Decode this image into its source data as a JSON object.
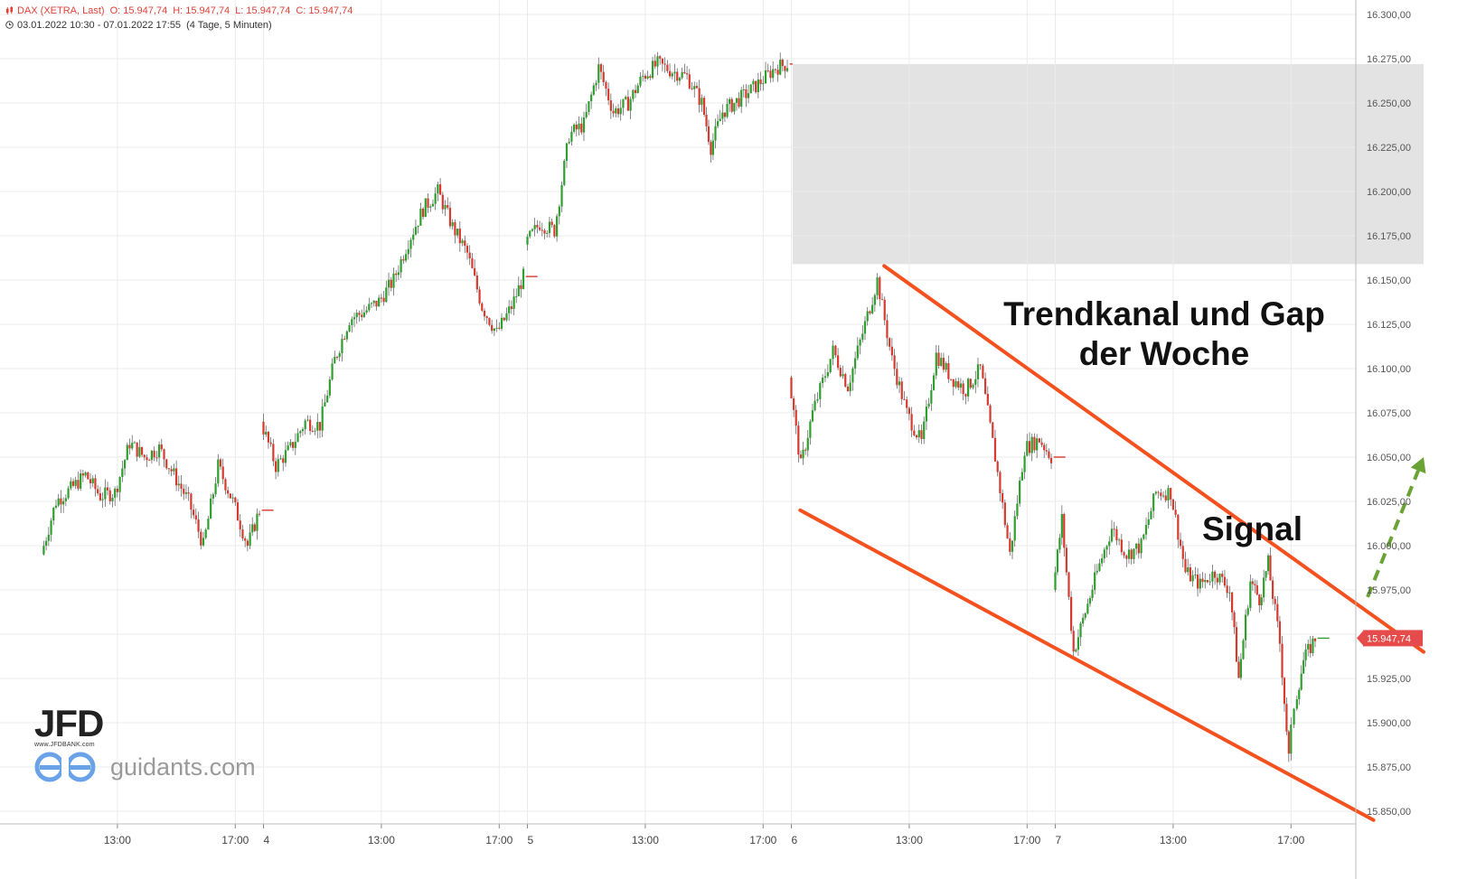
{
  "header": {
    "symbol": "DAX (XETRA, Last)",
    "open": "O: 15.947,74",
    "high": "H: 15.947,74",
    "low": "L: 15.947,74",
    "close": "C: 15.947,74",
    "range": "03.01.2022 10:30 - 07.01.2022 17:55",
    "interval": "(4 Tage, 5 Minuten)"
  },
  "annotations": {
    "title_line1": "Trendkanal und Gap",
    "title_line2": "der Woche",
    "signal": "Signal"
  },
  "branding": {
    "jfd": "JFD",
    "jfd_url": "www.JFDBANK.com",
    "guidants": "guidants.com"
  },
  "chart_data": {
    "type": "candlestick",
    "instrument": "DAX (XETRA, Last)",
    "timeframe": "5 Minuten",
    "ylim": [
      15840,
      16310
    ],
    "y_ticks": [
      15850,
      15875,
      15900,
      15925,
      15950,
      15975,
      16000,
      16025,
      16050,
      16075,
      16100,
      16125,
      16150,
      16175,
      16200,
      16225,
      16250,
      16275,
      16300
    ],
    "y_tick_labels": [
      "15.850,00",
      "15.875,00",
      "15.900,00",
      "15.925,00",
      "15.950,00",
      "15.975,00",
      "16.000,00",
      "16.025,00",
      "16.050,00",
      "16.075,00",
      "16.100,00",
      "16.125,00",
      "16.150,00",
      "16.175,00",
      "16.200,00",
      "16.225,00",
      "16.250,00",
      "16.275,00",
      "16.300,00"
    ],
    "x_ticks": [
      {
        "day": 0,
        "hour": 13,
        "label": "13:00"
      },
      {
        "day": 0,
        "hour": 17,
        "label": "17:00"
      },
      {
        "day": 1,
        "hour": 9,
        "label": "4"
      },
      {
        "day": 1,
        "hour": 13,
        "label": "13:00"
      },
      {
        "day": 1,
        "hour": 17,
        "label": "17:00"
      },
      {
        "day": 2,
        "hour": 9,
        "label": "5"
      },
      {
        "day": 2,
        "hour": 13,
        "label": "13:00"
      },
      {
        "day": 2,
        "hour": 17,
        "label": "17:00"
      },
      {
        "day": 3,
        "hour": 9,
        "label": "6"
      },
      {
        "day": 3,
        "hour": 13,
        "label": "13:00"
      },
      {
        "day": 3,
        "hour": 17,
        "label": "17:00"
      },
      {
        "day": 4,
        "hour": 9,
        "label": "7"
      },
      {
        "day": 4,
        "hour": 13,
        "label": "13:00"
      },
      {
        "day": 4,
        "hour": 17,
        "label": "17:00"
      }
    ],
    "last_price": 15947.74,
    "last_price_label": "15.947,74",
    "price_path": [
      {
        "day": 0,
        "hour": 10.5,
        "price": 15995
      },
      {
        "day": 0,
        "hour": 11.0,
        "price": 16025
      },
      {
        "day": 0,
        "hour": 11.5,
        "price": 16032
      },
      {
        "day": 0,
        "hour": 12.0,
        "price": 16040
      },
      {
        "day": 0,
        "hour": 12.5,
        "price": 16028
      },
      {
        "day": 0,
        "hour": 13.0,
        "price": 16030
      },
      {
        "day": 0,
        "hour": 13.5,
        "price": 16058
      },
      {
        "day": 0,
        "hour": 14.0,
        "price": 16050
      },
      {
        "day": 0,
        "hour": 14.5,
        "price": 16055
      },
      {
        "day": 0,
        "hour": 15.0,
        "price": 16040
      },
      {
        "day": 0,
        "hour": 15.5,
        "price": 16025
      },
      {
        "day": 0,
        "hour": 16.0,
        "price": 16000
      },
      {
        "day": 0,
        "hour": 16.5,
        "price": 16045
      },
      {
        "day": 0,
        "hour": 17.0,
        "price": 16025
      },
      {
        "day": 0,
        "hour": 17.5,
        "price": 16000
      },
      {
        "day": 0,
        "hour": 17.9,
        "price": 16020
      },
      {
        "day": 1,
        "hour": 9.0,
        "price": 16070
      },
      {
        "day": 1,
        "hour": 9.5,
        "price": 16045
      },
      {
        "day": 1,
        "hour": 10.0,
        "price": 16055
      },
      {
        "day": 1,
        "hour": 10.5,
        "price": 16070
      },
      {
        "day": 1,
        "hour": 11.0,
        "price": 16068
      },
      {
        "day": 1,
        "hour": 11.5,
        "price": 16105
      },
      {
        "day": 1,
        "hour": 12.0,
        "price": 16128
      },
      {
        "day": 1,
        "hour": 12.5,
        "price": 16132
      },
      {
        "day": 1,
        "hour": 13.0,
        "price": 16138
      },
      {
        "day": 1,
        "hour": 13.5,
        "price": 16150
      },
      {
        "day": 1,
        "hour": 14.0,
        "price": 16172
      },
      {
        "day": 1,
        "hour": 14.5,
        "price": 16190
      },
      {
        "day": 1,
        "hour": 15.0,
        "price": 16200
      },
      {
        "day": 1,
        "hour": 15.5,
        "price": 16180
      },
      {
        "day": 1,
        "hour": 16.0,
        "price": 16165
      },
      {
        "day": 1,
        "hour": 16.5,
        "price": 16135
      },
      {
        "day": 1,
        "hour": 17.0,
        "price": 16120
      },
      {
        "day": 1,
        "hour": 17.5,
        "price": 16135
      },
      {
        "day": 1,
        "hour": 17.9,
        "price": 16152
      },
      {
        "day": 2,
        "hour": 9.0,
        "price": 16170
      },
      {
        "day": 2,
        "hour": 9.5,
        "price": 16182
      },
      {
        "day": 2,
        "hour": 10.0,
        "price": 16178
      },
      {
        "day": 2,
        "hour": 10.5,
        "price": 16232
      },
      {
        "day": 2,
        "hour": 11.0,
        "price": 16238
      },
      {
        "day": 2,
        "hour": 11.5,
        "price": 16270
      },
      {
        "day": 2,
        "hour": 12.0,
        "price": 16245
      },
      {
        "day": 2,
        "hour": 12.5,
        "price": 16250
      },
      {
        "day": 2,
        "hour": 13.0,
        "price": 16265
      },
      {
        "day": 2,
        "hour": 13.5,
        "price": 16272
      },
      {
        "day": 2,
        "hour": 14.0,
        "price": 16268
      },
      {
        "day": 2,
        "hour": 14.5,
        "price": 16265
      },
      {
        "day": 2,
        "hour": 15.0,
        "price": 16250
      },
      {
        "day": 2,
        "hour": 15.3,
        "price": 16225
      },
      {
        "day": 2,
        "hour": 15.7,
        "price": 16245
      },
      {
        "day": 2,
        "hour": 16.5,
        "price": 16255
      },
      {
        "day": 2,
        "hour": 17.0,
        "price": 16262
      },
      {
        "day": 2,
        "hour": 17.5,
        "price": 16270
      },
      {
        "day": 2,
        "hour": 17.9,
        "price": 16272
      },
      {
        "day": 3,
        "hour": 9.0,
        "price": 16095
      },
      {
        "day": 3,
        "hour": 9.4,
        "price": 16045
      },
      {
        "day": 3,
        "hour": 9.8,
        "price": 16075
      },
      {
        "day": 3,
        "hour": 10.5,
        "price": 16110
      },
      {
        "day": 3,
        "hour": 11.0,
        "price": 16090
      },
      {
        "day": 3,
        "hour": 11.5,
        "price": 16120
      },
      {
        "day": 3,
        "hour": 12.0,
        "price": 16150
      },
      {
        "day": 3,
        "hour": 12.5,
        "price": 16105
      },
      {
        "day": 3,
        "hour": 13.0,
        "price": 16075
      },
      {
        "day": 3,
        "hour": 13.5,
        "price": 16058
      },
      {
        "day": 3,
        "hour": 14.0,
        "price": 16108
      },
      {
        "day": 3,
        "hour": 14.5,
        "price": 16095
      },
      {
        "day": 3,
        "hour": 15.0,
        "price": 16088
      },
      {
        "day": 3,
        "hour": 15.5,
        "price": 16100
      },
      {
        "day": 3,
        "hour": 16.0,
        "price": 16050
      },
      {
        "day": 3,
        "hour": 16.5,
        "price": 15995
      },
      {
        "day": 3,
        "hour": 17.0,
        "price": 16055
      },
      {
        "day": 3,
        "hour": 17.5,
        "price": 16060
      },
      {
        "day": 3,
        "hour": 17.9,
        "price": 16050
      },
      {
        "day": 4,
        "hour": 9.0,
        "price": 15975
      },
      {
        "day": 4,
        "hour": 9.3,
        "price": 16015
      },
      {
        "day": 4,
        "hour": 9.7,
        "price": 15940
      },
      {
        "day": 4,
        "hour": 10.5,
        "price": 15985
      },
      {
        "day": 4,
        "hour": 11.0,
        "price": 16010
      },
      {
        "day": 4,
        "hour": 11.5,
        "price": 15995
      },
      {
        "day": 4,
        "hour": 12.0,
        "price": 16000
      },
      {
        "day": 4,
        "hour": 12.5,
        "price": 16030
      },
      {
        "day": 4,
        "hour": 13.0,
        "price": 16030
      },
      {
        "day": 4,
        "hour": 13.5,
        "price": 15985
      },
      {
        "day": 4,
        "hour": 14.0,
        "price": 15978
      },
      {
        "day": 4,
        "hour": 14.5,
        "price": 15985
      },
      {
        "day": 4,
        "hour": 15.0,
        "price": 15975
      },
      {
        "day": 4,
        "hour": 15.3,
        "price": 15925
      },
      {
        "day": 4,
        "hour": 15.7,
        "price": 15980
      },
      {
        "day": 4,
        "hour": 16.0,
        "price": 15970
      },
      {
        "day": 4,
        "hour": 16.3,
        "price": 15990
      },
      {
        "day": 4,
        "hour": 16.7,
        "price": 15945
      },
      {
        "day": 4,
        "hour": 17.0,
        "price": 15880
      },
      {
        "day": 4,
        "hour": 17.2,
        "price": 15910
      },
      {
        "day": 4,
        "hour": 17.5,
        "price": 15935
      },
      {
        "day": 4,
        "hour": 17.9,
        "price": 15947.74
      }
    ],
    "gap_zone": {
      "start": {
        "day": 2,
        "hour": 18.0
      },
      "end": {
        "day": 4,
        "hour": 21.5
      },
      "from": 16159,
      "to": 16272
    },
    "trend_channel": {
      "upper": [
        {
          "day": 3,
          "hour": 12.15,
          "price": 16158
        },
        {
          "day": 4,
          "hour": 21.5,
          "price": 15940
        }
      ],
      "lower": [
        {
          "day": 3,
          "hour": 9.3,
          "price": 16020
        },
        {
          "day": 4,
          "hour": 19.8,
          "price": 15845
        }
      ]
    },
    "signal_arrow": {
      "from": {
        "day": 4,
        "hour": 19.6,
        "price": 15971
      },
      "to": {
        "day": 4,
        "hour": 21.5,
        "price": 16050
      }
    },
    "colors": {
      "up": "#2e9e2e",
      "down": "#d63a2f",
      "channel": "#f4511e",
      "signal": "#6aa335",
      "gap": "#e3e3e3",
      "grid": "#ebebeb",
      "price_label": "#e54b4b"
    }
  }
}
